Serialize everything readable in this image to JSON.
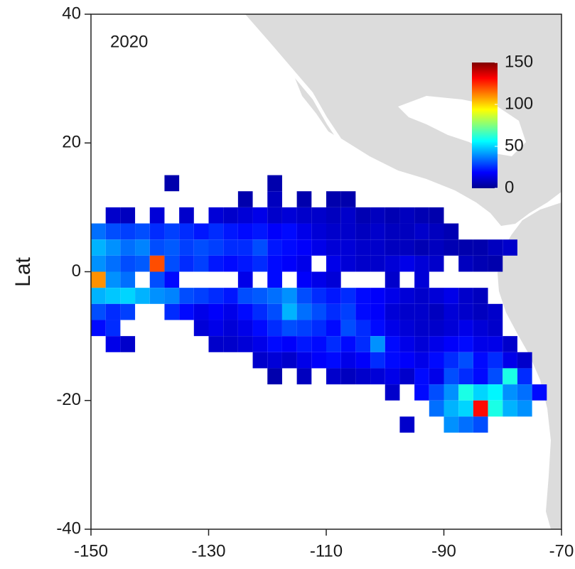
{
  "chart_data": {
    "type": "heatmap",
    "annotation": "2020",
    "ylabel": "Lat",
    "x": [
      -148.75,
      -146.25,
      -143.75,
      -141.25,
      -138.75,
      -136.25,
      -133.75,
      -131.25,
      -128.75,
      -126.25,
      -123.75,
      -121.25,
      -118.75,
      -116.25,
      -113.75,
      -111.25,
      -108.75,
      -106.25,
      -103.75,
      -101.25,
      -98.75,
      -96.25,
      -93.75,
      -91.25,
      -88.75,
      -86.25,
      -83.75,
      -81.25,
      -78.75,
      -76.25,
      -73.75
    ],
    "y": [
      13.75,
      11.25,
      8.75,
      6.25,
      3.75,
      1.25,
      -1.25,
      -3.75,
      -6.25,
      -8.75,
      -11.25,
      -13.75,
      -16.25,
      -18.75,
      -21.25,
      -23.75
    ],
    "z": [
      [
        null,
        null,
        null,
        null,
        null,
        5,
        null,
        null,
        null,
        null,
        null,
        null,
        5,
        null,
        null,
        null,
        null,
        null,
        null,
        null,
        null,
        null,
        null,
        null,
        null,
        null,
        null,
        null,
        null,
        null,
        null
      ],
      [
        null,
        null,
        null,
        null,
        null,
        null,
        null,
        null,
        null,
        null,
        5,
        null,
        8,
        null,
        5,
        null,
        5,
        5,
        null,
        null,
        null,
        null,
        null,
        null,
        null,
        null,
        null,
        null,
        null,
        null,
        null
      ],
      [
        null,
        10,
        8,
        null,
        12,
        null,
        10,
        null,
        12,
        10,
        12,
        15,
        10,
        12,
        10,
        10,
        8,
        10,
        6,
        8,
        6,
        8,
        6,
        5,
        null,
        null,
        null,
        null,
        null,
        null,
        null
      ],
      [
        35,
        30,
        28,
        30,
        25,
        28,
        25,
        22,
        25,
        22,
        20,
        22,
        18,
        20,
        15,
        12,
        10,
        10,
        8,
        10,
        8,
        8,
        10,
        8,
        6,
        null,
        null,
        null,
        null,
        null,
        null
      ],
      [
        45,
        40,
        35,
        38,
        30,
        32,
        28,
        30,
        28,
        25,
        25,
        30,
        22,
        20,
        18,
        15,
        12,
        12,
        10,
        10,
        8,
        8,
        6,
        8,
        6,
        5,
        5,
        8,
        10,
        null,
        null
      ],
      [
        40,
        35,
        30,
        32,
        120,
        30,
        25,
        28,
        22,
        20,
        22,
        25,
        20,
        18,
        15,
        null,
        15,
        12,
        10,
        10,
        12,
        15,
        12,
        10,
        null,
        8,
        6,
        5,
        null,
        null,
        null
      ],
      [
        110,
        40,
        35,
        null,
        30,
        20,
        null,
        null,
        null,
        null,
        15,
        null,
        20,
        null,
        18,
        15,
        12,
        null,
        null,
        null,
        10,
        null,
        12,
        null,
        null,
        null,
        null,
        null,
        null,
        null,
        null
      ],
      [
        45,
        48,
        50,
        45,
        40,
        38,
        30,
        28,
        25,
        22,
        30,
        32,
        35,
        40,
        30,
        25,
        22,
        25,
        20,
        18,
        15,
        12,
        10,
        12,
        15,
        10,
        8,
        null,
        null,
        null,
        null
      ],
      [
        30,
        25,
        28,
        null,
        null,
        25,
        20,
        15,
        18,
        15,
        20,
        25,
        30,
        45,
        35,
        30,
        25,
        28,
        20,
        18,
        12,
        10,
        10,
        8,
        12,
        10,
        8,
        10,
        null,
        null,
        null
      ],
      [
        20,
        25,
        null,
        null,
        null,
        null,
        null,
        12,
        15,
        12,
        15,
        20,
        25,
        30,
        28,
        25,
        20,
        30,
        25,
        20,
        15,
        12,
        10,
        10,
        12,
        15,
        12,
        10,
        null,
        null,
        null
      ],
      [
        null,
        15,
        10,
        null,
        null,
        null,
        null,
        null,
        10,
        10,
        12,
        15,
        20,
        18,
        22,
        20,
        25,
        20,
        25,
        40,
        20,
        15,
        12,
        15,
        18,
        20,
        15,
        15,
        10,
        null,
        null
      ],
      [
        null,
        null,
        null,
        null,
        null,
        null,
        null,
        null,
        null,
        null,
        null,
        10,
        12,
        10,
        15,
        18,
        20,
        15,
        18,
        25,
        20,
        18,
        15,
        20,
        25,
        30,
        20,
        25,
        15,
        10,
        null
      ],
      [
        null,
        null,
        null,
        null,
        null,
        null,
        null,
        null,
        null,
        null,
        null,
        null,
        5,
        null,
        8,
        null,
        10,
        8,
        10,
        12,
        15,
        10,
        20,
        15,
        30,
        25,
        20,
        30,
        60,
        25,
        null
      ],
      [
        null,
        null,
        null,
        null,
        null,
        null,
        null,
        null,
        null,
        null,
        null,
        null,
        null,
        null,
        null,
        null,
        null,
        null,
        null,
        null,
        10,
        null,
        20,
        30,
        40,
        60,
        50,
        55,
        40,
        35,
        20
      ],
      [
        null,
        null,
        null,
        null,
        null,
        null,
        null,
        null,
        null,
        null,
        null,
        null,
        null,
        null,
        null,
        null,
        null,
        null,
        null,
        null,
        null,
        null,
        null,
        35,
        45,
        50,
        130,
        60,
        45,
        40,
        null
      ],
      [
        null,
        null,
        null,
        null,
        null,
        null,
        null,
        null,
        null,
        null,
        null,
        null,
        null,
        null,
        null,
        null,
        null,
        null,
        null,
        null,
        null,
        10,
        null,
        null,
        40,
        35,
        30,
        null,
        null,
        null,
        null
      ]
    ],
    "xlim": [
      -150,
      -70
    ],
    "ylim": [
      -40,
      40
    ],
    "xticks": [
      -150,
      -130,
      -110,
      -90,
      -70
    ],
    "yticks": [
      -40,
      -20,
      0,
      20,
      40
    ],
    "colorscale": [
      "#00008f",
      "#0000ff",
      "#0080ff",
      "#00ffff",
      "#80ff80",
      "#ffff00",
      "#ff8000",
      "#ff0000",
      "#800000"
    ],
    "colorbar": {
      "clim": [
        0,
        150
      ],
      "ticks": [
        0,
        50,
        100,
        150
      ]
    }
  }
}
